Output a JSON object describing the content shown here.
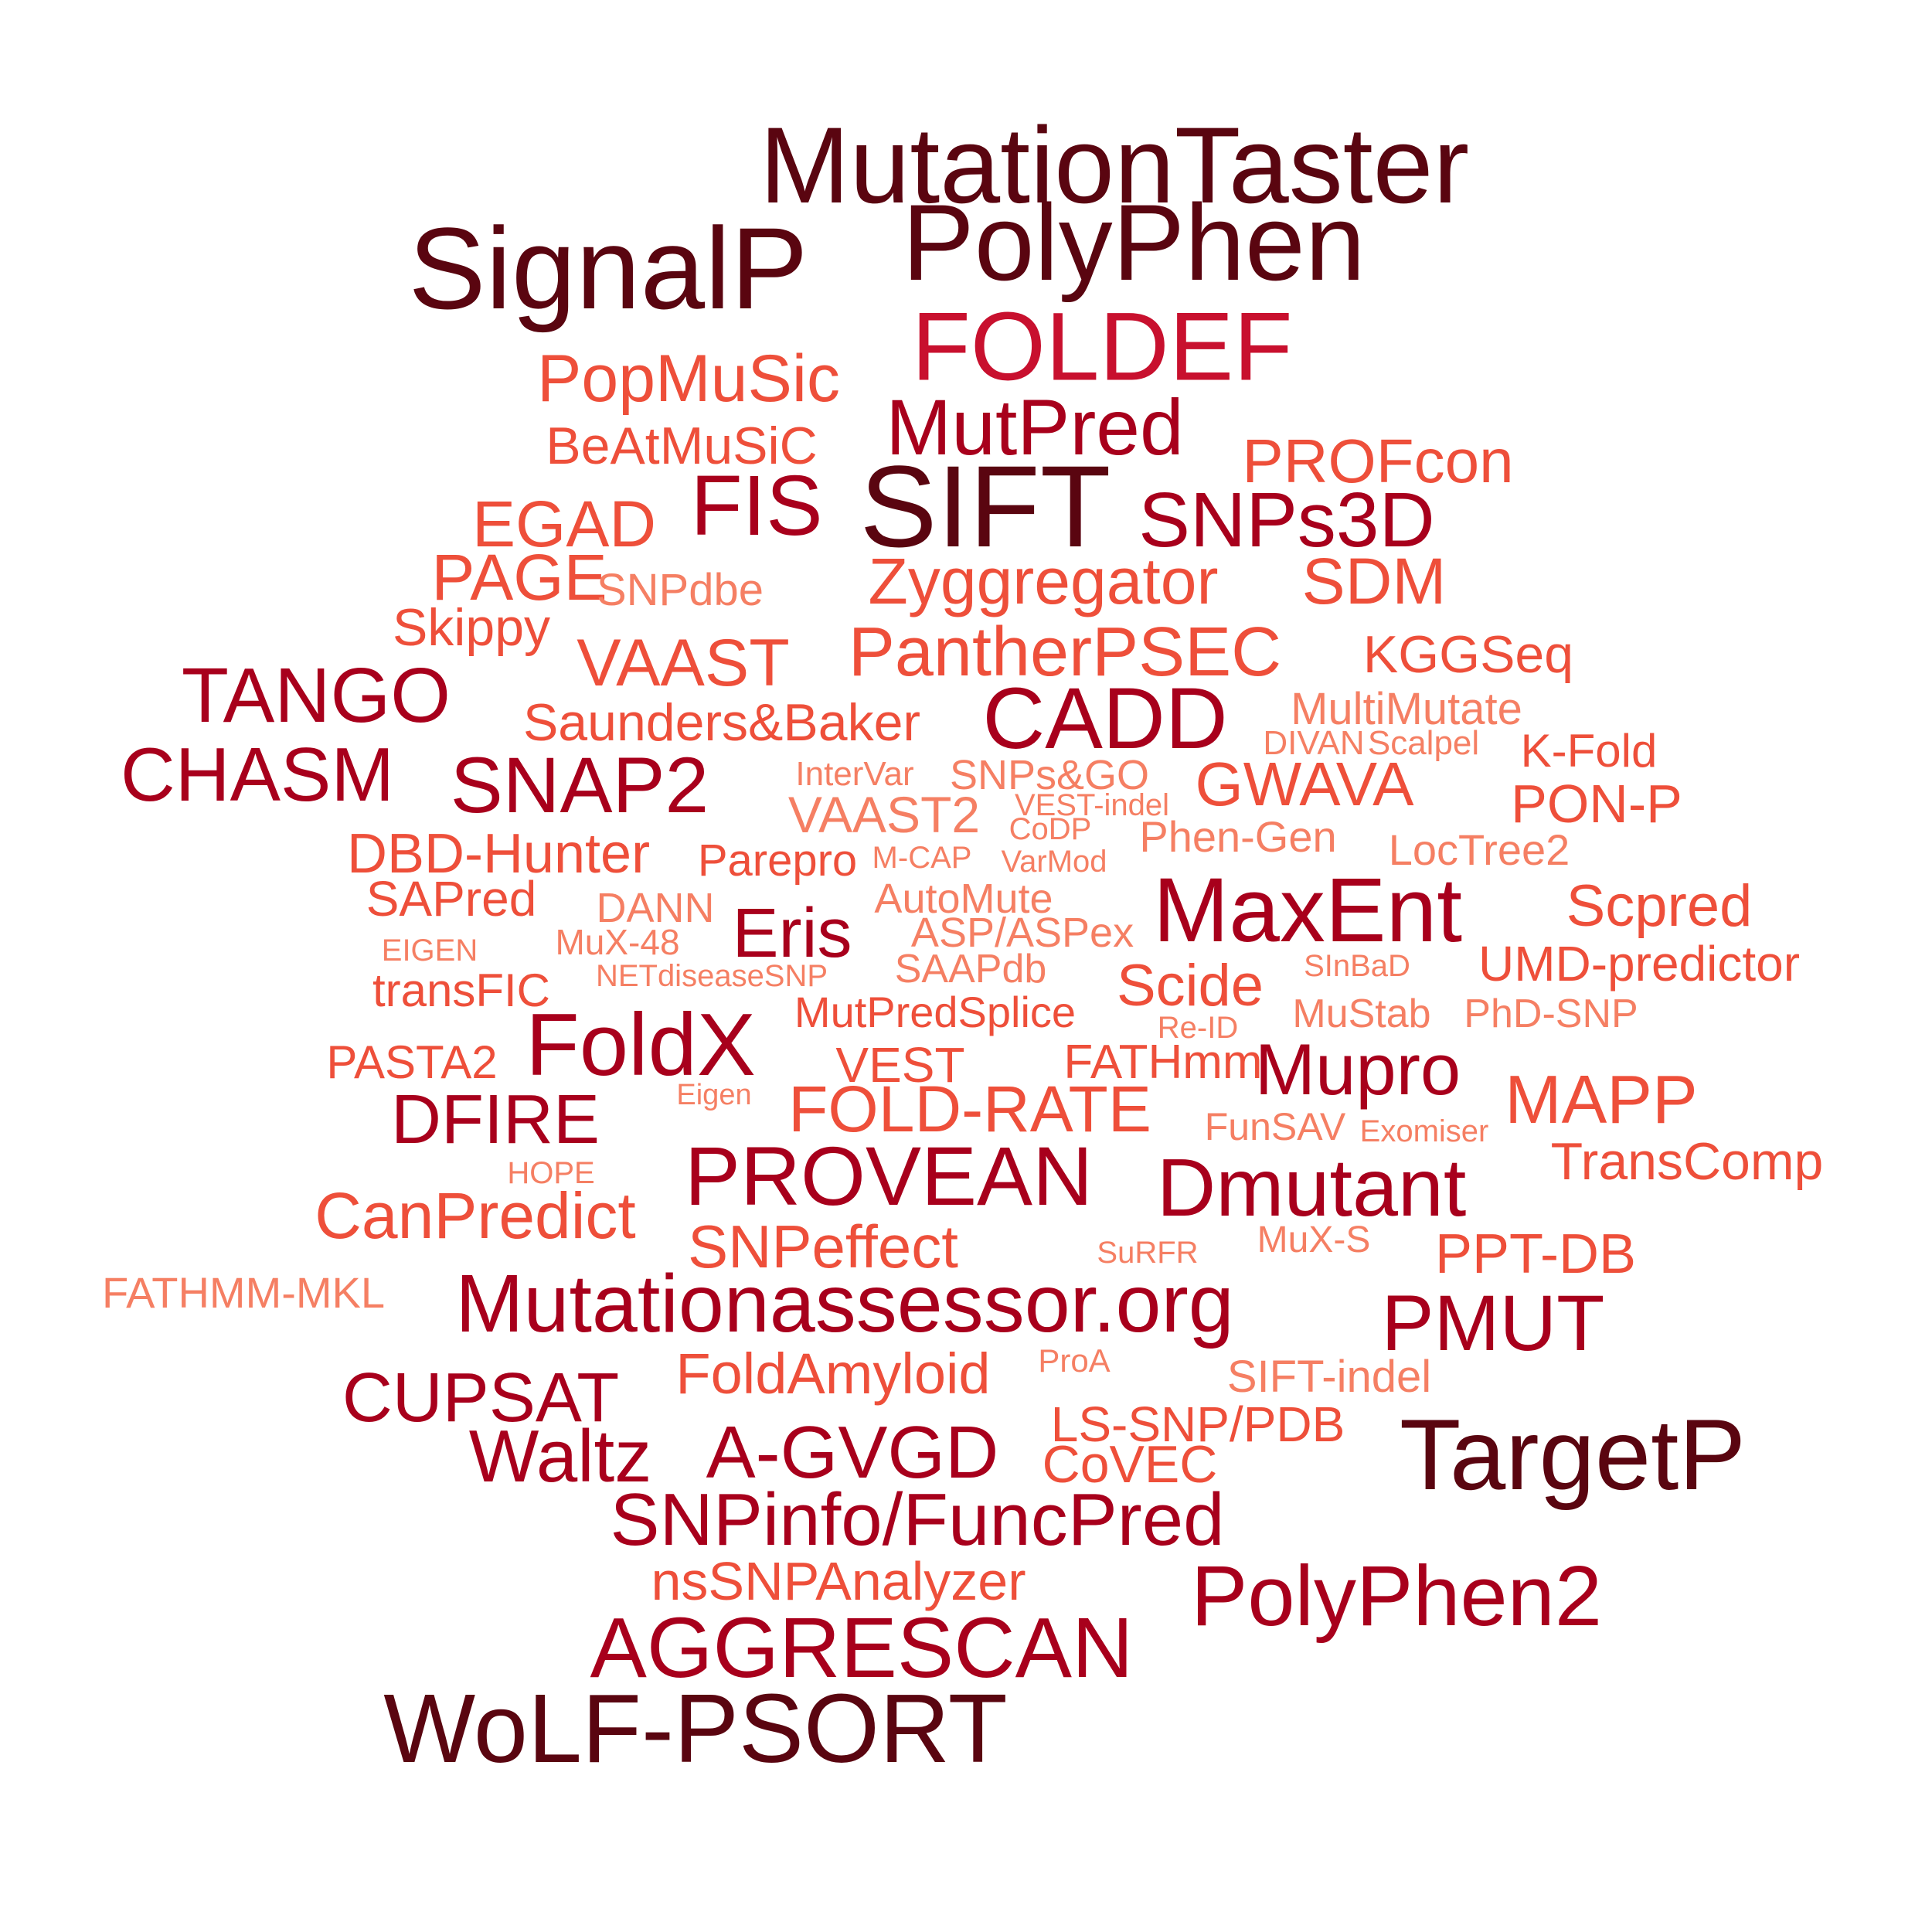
{
  "palette": {
    "darkest": "#5a0510",
    "dark": "#a8001c",
    "mid": "#c8102e",
    "light": "#ee4f3a",
    "lightest": "#f57f63"
  },
  "words": [
    {
      "text": "MutationTaster",
      "tone": "darkest"
    },
    {
      "text": "SignalP",
      "tone": "darkest"
    },
    {
      "text": "PolyPhen",
      "tone": "darkest"
    },
    {
      "text": "FOLDEF",
      "tone": "mid"
    },
    {
      "text": "PopMuSic",
      "tone": "light"
    },
    {
      "text": "MutPred",
      "tone": "dark"
    },
    {
      "text": "BeAtMuSiC",
      "tone": "light"
    },
    {
      "text": "PROFcon",
      "tone": "light"
    },
    {
      "text": "FIS",
      "tone": "dark"
    },
    {
      "text": "SIFT",
      "tone": "darkest"
    },
    {
      "text": "SNPs3D",
      "tone": "dark"
    },
    {
      "text": "EGAD",
      "tone": "light"
    },
    {
      "text": "PAGE",
      "tone": "light"
    },
    {
      "text": "SNPdbe",
      "tone": "lightest"
    },
    {
      "text": "Zyggregator",
      "tone": "light"
    },
    {
      "text": "SDM",
      "tone": "light"
    },
    {
      "text": "Skippy",
      "tone": "light"
    },
    {
      "text": "VAAST",
      "tone": "light"
    },
    {
      "text": "PantherPSEC",
      "tone": "light"
    },
    {
      "text": "KGGSeq",
      "tone": "light"
    },
    {
      "text": "TANGO",
      "tone": "dark"
    },
    {
      "text": "CADD",
      "tone": "dark"
    },
    {
      "text": "Saunders&Baker",
      "tone": "light"
    },
    {
      "text": "MultiMutate",
      "tone": "lightest"
    },
    {
      "text": "DIVAN",
      "tone": "lightest"
    },
    {
      "text": "Scalpel",
      "tone": "lightest"
    },
    {
      "text": "K-Fold",
      "tone": "light"
    },
    {
      "text": "CHASM",
      "tone": "dark"
    },
    {
      "text": "SNAP2",
      "tone": "dark"
    },
    {
      "text": "InterVar",
      "tone": "lightest"
    },
    {
      "text": "SNPs&GO",
      "tone": "lightest"
    },
    {
      "text": "GWAVA",
      "tone": "light"
    },
    {
      "text": "VEST-indel",
      "tone": "lightest"
    },
    {
      "text": "PON-P",
      "tone": "light"
    },
    {
      "text": "VAAST2",
      "tone": "lightest"
    },
    {
      "text": "CoDP",
      "tone": "lightest"
    },
    {
      "text": "Phen-Gen",
      "tone": "lightest"
    },
    {
      "text": "DBD-Hunter",
      "tone": "light"
    },
    {
      "text": "Parepro",
      "tone": "light"
    },
    {
      "text": "M-CAP",
      "tone": "lightest"
    },
    {
      "text": "VarMod",
      "tone": "lightest"
    },
    {
      "text": "LocTree2",
      "tone": "lightest"
    },
    {
      "text": "SAPred",
      "tone": "light"
    },
    {
      "text": "DANN",
      "tone": "lightest"
    },
    {
      "text": "AutoMute",
      "tone": "lightest"
    },
    {
      "text": "MaxEnt",
      "tone": "dark"
    },
    {
      "text": "Scpred",
      "tone": "light"
    },
    {
      "text": "Eris",
      "tone": "dark"
    },
    {
      "text": "MuX-48",
      "tone": "lightest"
    },
    {
      "text": "ASP/ASPex",
      "tone": "lightest"
    },
    {
      "text": "EIGEN",
      "tone": "lightest"
    },
    {
      "text": "SAAPdb",
      "tone": "lightest"
    },
    {
      "text": "SInBaD",
      "tone": "lightest"
    },
    {
      "text": "UMD-predictor",
      "tone": "light"
    },
    {
      "text": "NETdiseaseSNP",
      "tone": "lightest"
    },
    {
      "text": "transFIC",
      "tone": "light"
    },
    {
      "text": "Scide",
      "tone": "light"
    },
    {
      "text": "MutPredSplice",
      "tone": "light"
    },
    {
      "text": "MuStab",
      "tone": "lightest"
    },
    {
      "text": "PhD-SNP",
      "tone": "lightest"
    },
    {
      "text": "Re-ID",
      "tone": "lightest"
    },
    {
      "text": "FoldX",
      "tone": "dark"
    },
    {
      "text": "PASTA2",
      "tone": "light"
    },
    {
      "text": "VEST",
      "tone": "light"
    },
    {
      "text": "FATHmm",
      "tone": "light"
    },
    {
      "text": "Mupro",
      "tone": "dark"
    },
    {
      "text": "Eigen",
      "tone": "lightest"
    },
    {
      "text": "FOLD-RATE",
      "tone": "light"
    },
    {
      "text": "MAPP",
      "tone": "light"
    },
    {
      "text": "DFIRE",
      "tone": "dark"
    },
    {
      "text": "FunSAV",
      "tone": "lightest"
    },
    {
      "text": "Exomiser",
      "tone": "lightest"
    },
    {
      "text": "PROVEAN",
      "tone": "dark"
    },
    {
      "text": "Dmutant",
      "tone": "dark"
    },
    {
      "text": "TransComp",
      "tone": "light"
    },
    {
      "text": "HOPE",
      "tone": "lightest"
    },
    {
      "text": "CanPredict",
      "tone": "light"
    },
    {
      "text": "SNPeffect",
      "tone": "light"
    },
    {
      "text": "MuX-S",
      "tone": "lightest"
    },
    {
      "text": "SuRFR",
      "tone": "lightest"
    },
    {
      "text": "PPT-DB",
      "tone": "light"
    },
    {
      "text": "FATHMM-MKL",
      "tone": "lightest"
    },
    {
      "text": "Mutationassessor.org",
      "tone": "dark"
    },
    {
      "text": "PMUT",
      "tone": "dark"
    },
    {
      "text": "ProA",
      "tone": "lightest"
    },
    {
      "text": "FoldAmyloid",
      "tone": "light"
    },
    {
      "text": "SIFT-indel",
      "tone": "lightest"
    },
    {
      "text": "CUPSAT",
      "tone": "dark"
    },
    {
      "text": "LS-SNP/PDB",
      "tone": "light"
    },
    {
      "text": "TargetP",
      "tone": "darkest"
    },
    {
      "text": "Waltz",
      "tone": "dark"
    },
    {
      "text": "A-GVGD",
      "tone": "dark"
    },
    {
      "text": "CoVEC",
      "tone": "light"
    },
    {
      "text": "SNPinfo/FuncPred",
      "tone": "dark"
    },
    {
      "text": "nsSNPAnalyzer",
      "tone": "light"
    },
    {
      "text": "PolyPhen2",
      "tone": "dark"
    },
    {
      "text": "AGGRESCAN",
      "tone": "dark"
    },
    {
      "text": "WoLF-PSORT",
      "tone": "darkest"
    }
  ]
}
